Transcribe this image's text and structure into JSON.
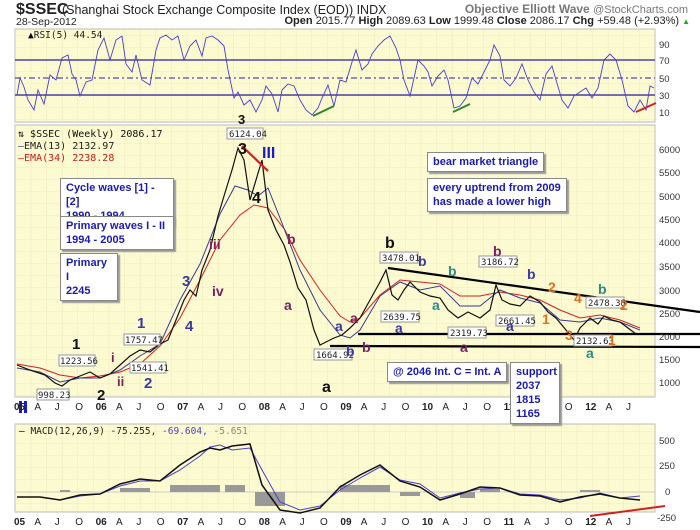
{
  "header": {
    "symbol": "$SSEC",
    "name": "(Shanghai Stock Exchange Composite Index (EOD)) INDX",
    "date": "28-Sep-2012",
    "brand": "Objective Elliott Wave",
    "copyright": "@StockCharts.com",
    "open_label": "Open",
    "open": "2015.77",
    "high_label": "High",
    "high": "2089.63",
    "low_label": "Low",
    "low": "1999.48",
    "close_label": "Close",
    "close": "2086.17",
    "chg_label": "Chg",
    "chg": "+59.48 (+2.93%)",
    "chg_arrow": "▲"
  },
  "rsi_panel": {
    "label": "RSI(5) 44.54",
    "ticks": [
      "90",
      "70",
      "50",
      "30",
      "10"
    ]
  },
  "price_panel": {
    "legend_main": "$SSEC (Weekly) 2086.17",
    "legend_ema13": "EMA(13) 2132.97",
    "legend_ema34": "EMA(34) 2238.28",
    "ticks": [
      "6000",
      "5500",
      "5000",
      "4500",
      "4000",
      "3500",
      "3000",
      "2500",
      "2000",
      "1500",
      "1000"
    ]
  },
  "macd_panel": {
    "label_prefix": "MACD(12,26,9)",
    "macd": "-75.255,",
    "signal": "-69.604,",
    "hist": "-5.651",
    "ticks": [
      "500",
      "250",
      "0",
      "-250",
      "-500"
    ]
  },
  "x_axis": [
    "05",
    "A",
    "J",
    "O",
    "06",
    "A",
    "J",
    "O",
    "07",
    "A",
    "J",
    "O",
    "08",
    "A",
    "J",
    "O",
    "09",
    "A",
    "J",
    "O",
    "10",
    "A",
    "J",
    "O",
    "11",
    "A",
    "J",
    "O",
    "12",
    "A",
    "J"
  ],
  "notes": {
    "cycle": [
      "Cycle waves [1] - [2]",
      "1990 - 1994"
    ],
    "primary_waves": [
      "Primary waves I - II",
      "1994 - 2005"
    ],
    "primary_i": [
      "Primary I",
      "2245"
    ],
    "bear_triangle": "bear market triangle",
    "uptrend": [
      "every uptrend from 2009",
      "has made a lower high"
    ],
    "int_c": "@ 2046 Int. C = Int. A",
    "support": [
      "support",
      "2037",
      "1815",
      "1165"
    ]
  },
  "chart_data": [
    {
      "type": "line",
      "title": "$SSEC (Shanghai Stock Exchange Composite Index (EOD)) Weekly",
      "xlabel": "",
      "ylabel": "",
      "ylim": [
        700,
        6500
      ],
      "x": [
        "2005-01",
        "2005-06",
        "2006-01",
        "2006-06",
        "2007-01",
        "2007-06",
        "2007-10",
        "2008-01",
        "2008-06",
        "2008-11",
        "2009-08",
        "2009-09",
        "2010-04",
        "2010-07",
        "2010-11",
        "2011-01",
        "2011-04",
        "2011-10",
        "2012-01",
        "2012-05",
        "2012-09"
      ],
      "series": [
        {
          "name": "$SSEC (Weekly)",
          "values": [
            1250,
            998,
            1223,
            1757,
            2700,
            4000,
            6124,
            5500,
            2900,
            1665,
            3478,
            2640,
            3100,
            2320,
            3187,
            2661,
            3050,
            2400,
            2133,
            2478,
            2086
          ]
        },
        {
          "name": "EMA(13)",
          "values": [
            1260,
            1060,
            1180,
            1650,
            2500,
            3800,
            5400,
            5300,
            3400,
            1900,
            3100,
            2900,
            3050,
            2550,
            2950,
            2800,
            2950,
            2500,
            2250,
            2400,
            2133
          ]
        },
        {
          "name": "EMA(34)",
          "values": [
            1300,
            1150,
            1150,
            1500,
            2100,
            3200,
            4700,
            5100,
            4000,
            2300,
            2700,
            2950,
            3000,
            2800,
            2800,
            2850,
            2900,
            2650,
            2400,
            2420,
            2238
          ]
        }
      ],
      "annotations": [
        "6124.04",
        "3478.01",
        "3186.72",
        "2639.75",
        "2319.73",
        "2661.45",
        "2478.38",
        "2132.63",
        "1664.92",
        "1757.47",
        "1541.41",
        "1223.56",
        "998.23"
      ],
      "wave_labels": [
        "1",
        "2",
        "i",
        "ii",
        "1",
        "2",
        "3",
        "4",
        "iii",
        "iv",
        "3",
        "4",
        "III",
        "a",
        "b",
        "a",
        "a",
        "b",
        "b",
        "a",
        "b",
        "a",
        "b",
        "a",
        "b",
        "a",
        "1",
        "2",
        "3",
        "4",
        "1",
        "2",
        "a",
        "b"
      ],
      "legend_position": "top-left",
      "grid": true
    },
    {
      "type": "line",
      "title": "RSI(5) 44.54",
      "ylim": [
        0,
        100
      ],
      "reference_lines": [
        70,
        50,
        30
      ],
      "series": [
        {
          "name": "RSI(5)",
          "last": 44.54
        }
      ]
    },
    {
      "type": "line",
      "title": "MACD(12,26,9)",
      "ylim": [
        -550,
        600
      ],
      "x": [
        "2005-01",
        "2006-01",
        "2006-06",
        "2007-01",
        "2007-06",
        "2007-10",
        "2008-04",
        "2008-10",
        "2009-08",
        "2010-01",
        "2010-07",
        "2011-01",
        "2011-04",
        "2012-01",
        "2012-05",
        "2012-09"
      ],
      "series": [
        {
          "name": "MACD",
          "values": [
            -40,
            -10,
            120,
            300,
            480,
            560,
            -350,
            -450,
            260,
            100,
            -150,
            60,
            50,
            -120,
            -10,
            -75.255
          ]
        },
        {
          "name": "Signal",
          "values": [
            -40,
            -10,
            100,
            270,
            440,
            520,
            -250,
            -440,
            220,
            110,
            -120,
            40,
            40,
            -100,
            -10,
            -69.604
          ]
        },
        {
          "name": "Histogram",
          "last": -5.651
        }
      ]
    }
  ]
}
